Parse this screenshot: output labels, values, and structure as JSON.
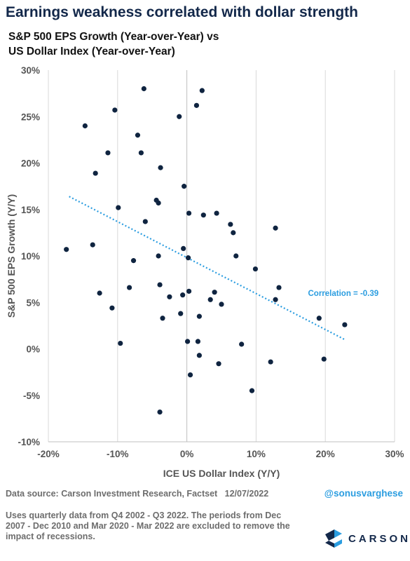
{
  "header": {
    "title": "Earnings weakness correlated with dollar strength",
    "subtitle_line1": "S&P 500 EPS Growth (Year-over-Year) vs",
    "subtitle_line2": "US Dollar Index (Year-over-Year)"
  },
  "footer": {
    "source": "Data source: Carson Investment Research, Factset",
    "date": "12/07/2022",
    "handle": "@sonusvarghese",
    "note": "Uses quarterly data from Q4 2002 - Q3 2022. The periods from Dec 2007 - Dec 2010 and Mar 2020 - Mar 2022 are excluded to remove the impact of recessions.",
    "logo_text": "CARSON"
  },
  "colors": {
    "point": "#0f2440",
    "trendline": "#2b9de0",
    "annotation": "#2b9de0",
    "axis_text": "#555555",
    "title": "#13284a"
  },
  "chart_data": {
    "type": "scatter",
    "xlabel": "ICE US Dollar Index (Y/Y)",
    "ylabel": "S&P 500 EPS Growth (Y/Y)",
    "xlim": [
      -0.2,
      0.3
    ],
    "ylim": [
      -0.1,
      0.3
    ],
    "x_ticks": [
      {
        "value": -0.2,
        "label": "-20%"
      },
      {
        "value": -0.1,
        "label": "-10%"
      },
      {
        "value": 0.0,
        "label": "0%"
      },
      {
        "value": 0.1,
        "label": "10%"
      },
      {
        "value": 0.2,
        "label": "20%"
      },
      {
        "value": 0.3,
        "label": "30%"
      }
    ],
    "y_ticks": [
      {
        "value": -0.1,
        "label": "-10%"
      },
      {
        "value": -0.05,
        "label": "-5%"
      },
      {
        "value": 0.0,
        "label": "0%"
      },
      {
        "value": 0.05,
        "label": "5%"
      },
      {
        "value": 0.1,
        "label": "10%"
      },
      {
        "value": 0.15,
        "label": "15%"
      },
      {
        "value": 0.2,
        "label": "20%"
      },
      {
        "value": 0.25,
        "label": "25%"
      },
      {
        "value": 0.3,
        "label": "30%"
      }
    ],
    "grid": {
      "x": true,
      "y": false
    },
    "points": [
      {
        "x": -0.062,
        "y": 0.28
      },
      {
        "x": 0.022,
        "y": 0.278
      },
      {
        "x": 0.014,
        "y": 0.262
      },
      {
        "x": -0.104,
        "y": 0.257
      },
      {
        "x": -0.011,
        "y": 0.25
      },
      {
        "x": -0.147,
        "y": 0.24
      },
      {
        "x": -0.071,
        "y": 0.23
      },
      {
        "x": -0.114,
        "y": 0.211
      },
      {
        "x": -0.066,
        "y": 0.211
      },
      {
        "x": -0.038,
        "y": 0.195
      },
      {
        "x": -0.132,
        "y": 0.189
      },
      {
        "x": -0.004,
        "y": 0.175
      },
      {
        "x": -0.044,
        "y": 0.16
      },
      {
        "x": -0.041,
        "y": 0.157
      },
      {
        "x": -0.099,
        "y": 0.152
      },
      {
        "x": 0.003,
        "y": 0.146
      },
      {
        "x": 0.043,
        "y": 0.146
      },
      {
        "x": 0.024,
        "y": 0.144
      },
      {
        "x": -0.06,
        "y": 0.137
      },
      {
        "x": 0.063,
        "y": 0.134
      },
      {
        "x": 0.128,
        "y": 0.13
      },
      {
        "x": 0.067,
        "y": 0.125
      },
      {
        "x": -0.136,
        "y": 0.112
      },
      {
        "x": -0.174,
        "y": 0.107
      },
      {
        "x": -0.005,
        "y": 0.108
      },
      {
        "x": -0.041,
        "y": 0.1
      },
      {
        "x": 0.071,
        "y": 0.1
      },
      {
        "x": 0.002,
        "y": 0.098
      },
      {
        "x": -0.077,
        "y": 0.095
      },
      {
        "x": 0.099,
        "y": 0.086
      },
      {
        "x": -0.039,
        "y": 0.069
      },
      {
        "x": -0.083,
        "y": 0.066
      },
      {
        "x": 0.133,
        "y": 0.066
      },
      {
        "x": 0.003,
        "y": 0.062
      },
      {
        "x": 0.04,
        "y": 0.061
      },
      {
        "x": -0.126,
        "y": 0.06
      },
      {
        "x": -0.006,
        "y": 0.058
      },
      {
        "x": -0.025,
        "y": 0.056
      },
      {
        "x": 0.128,
        "y": 0.053
      },
      {
        "x": 0.034,
        "y": 0.053
      },
      {
        "x": 0.05,
        "y": 0.048
      },
      {
        "x": -0.108,
        "y": 0.044
      },
      {
        "x": -0.009,
        "y": 0.038
      },
      {
        "x": 0.018,
        "y": 0.035
      },
      {
        "x": -0.035,
        "y": 0.033
      },
      {
        "x": 0.191,
        "y": 0.033
      },
      {
        "x": 0.228,
        "y": 0.026
      },
      {
        "x": 0.001,
        "y": 0.008
      },
      {
        "x": 0.016,
        "y": 0.008
      },
      {
        "x": -0.096,
        "y": 0.006
      },
      {
        "x": 0.079,
        "y": 0.005
      },
      {
        "x": 0.018,
        "y": -0.007
      },
      {
        "x": 0.198,
        "y": -0.011
      },
      {
        "x": 0.121,
        "y": -0.014
      },
      {
        "x": 0.046,
        "y": -0.016
      },
      {
        "x": 0.005,
        "y": -0.028
      },
      {
        "x": 0.094,
        "y": -0.045
      },
      {
        "x": -0.039,
        "y": -0.068
      }
    ],
    "trendline": {
      "x": [
        -0.17,
        0.228
      ],
      "y": [
        0.164,
        0.01
      ]
    },
    "annotation": {
      "text": "Correlation = -0.39",
      "x": 0.175,
      "y": 0.06
    }
  }
}
